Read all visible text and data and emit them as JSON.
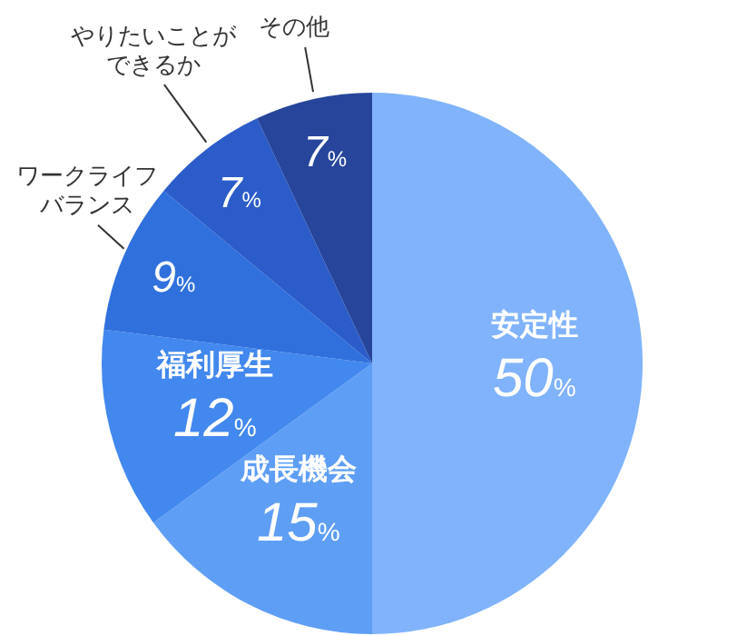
{
  "chart_data": {
    "type": "pie",
    "categories": [
      "安定性",
      "成長機会",
      "福利厚生",
      "ワークライフバランス",
      "やりたいことができるか",
      "その他"
    ],
    "values": [
      50,
      15,
      12,
      9,
      7,
      7
    ],
    "value_labels": [
      "50%",
      "15%",
      "12%",
      "9%",
      "7%",
      "7%"
    ],
    "colors": [
      "#80b3fb",
      "#5e9ef5",
      "#4288ee",
      "#2f70dd",
      "#2b5cc9",
      "#26459b"
    ]
  }
}
